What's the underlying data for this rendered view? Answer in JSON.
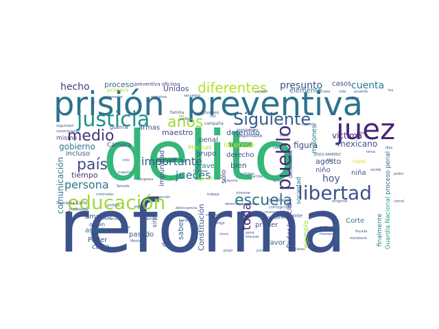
{
  "palette": {
    "background": "#ffffff",
    "dark_purple": "#440154",
    "indigo": "#3b528b",
    "blue": "#31688e",
    "teal": "#21908d",
    "green": "#35b779",
    "bright_green": "#5ec962",
    "lime": "#b5de2b",
    "yellow": "#fde725"
  },
  "words": [
    {
      "text": "reforma",
      "color": "#3b528b",
      "rotated": false
    },
    {
      "text": "delito",
      "color": "#35b779",
      "rotated": false
    },
    {
      "text": "prisión",
      "color": "#2c728e",
      "rotated": false
    },
    {
      "text": "preventiva",
      "color": "#2c728e",
      "rotated": false
    },
    {
      "text": "juez",
      "color": "#482677",
      "rotated": false
    },
    {
      "text": "justicia",
      "color": "#21908d",
      "rotated": false
    },
    {
      "text": "años",
      "color": "#a0da39",
      "rotated": false
    },
    {
      "text": "Siguiente",
      "color": "#38598c",
      "rotated": false
    },
    {
      "text": "educación",
      "color": "#a0da39",
      "rotated": false
    },
    {
      "text": "libertad",
      "color": "#3b528b",
      "rotated": false
    },
    {
      "text": "escuela",
      "color": "#2c728e",
      "rotated": false
    },
    {
      "text": "pueblo",
      "color": "#472d7b",
      "rotated": true
    },
    {
      "text": "diferentes",
      "color": "#b5de2b",
      "rotated": false
    },
    {
      "text": "medio",
      "color": "#46327e",
      "rotated": false
    },
    {
      "text": "país",
      "color": "#3e4a89",
      "rotated": false
    },
    {
      "text": "persona",
      "color": "#2c728e",
      "rotated": false
    },
    {
      "text": "importante",
      "color": "#38598c",
      "rotated": false
    },
    {
      "text": "jueces",
      "color": "#2c728e",
      "rotated": false
    },
    {
      "text": "toda",
      "color": "#482475",
      "rotated": true
    },
    {
      "text": "hoy",
      "color": "#3b528b",
      "rotated": false
    },
    {
      "text": "presunto",
      "color": "#3b528b",
      "rotated": false
    },
    {
      "text": "cuenta",
      "color": "#2a788e",
      "rotated": false
    },
    {
      "text": "hecho",
      "color": "#453781",
      "rotated": false
    },
    {
      "text": "proceso",
      "color": "#31688e",
      "rotated": false
    },
    {
      "text": "preventiva oficiosa",
      "color": "#443983",
      "rotated": false
    },
    {
      "text": "Unidos",
      "color": "#3e4a89",
      "rotated": false
    },
    {
      "text": "elemento",
      "color": "#2c728e",
      "rotated": false
    },
    {
      "text": "casos",
      "color": "#404688",
      "rotated": false
    },
    {
      "text": "primera",
      "color": "#b5de2b",
      "rotated": false
    },
    {
      "text": "víctima",
      "color": "#472c7a",
      "rotated": false
    },
    {
      "text": "figura",
      "color": "#3e4a89",
      "rotated": false
    },
    {
      "text": "mexicano",
      "color": "#3b528b",
      "rotated": false
    },
    {
      "text": "gobierno",
      "color": "#2a788e",
      "rotated": false
    },
    {
      "text": "incluso",
      "color": "#3b528b",
      "rotated": false
    },
    {
      "text": "tiempo",
      "color": "#443983",
      "rotated": false
    },
    {
      "text": "comunicación",
      "color": "#2a788e",
      "rotated": true
    },
    {
      "text": "maestro",
      "color": "#404688",
      "rotated": false
    },
    {
      "text": "detenido",
      "color": "#3b528b",
      "rotated": false
    },
    {
      "text": "interese",
      "color": "#d8e219",
      "rotated": false
    },
    {
      "text": "derecho",
      "color": "#3e4a89",
      "rotated": false
    },
    {
      "text": "bien",
      "color": "#3b528b",
      "rotated": false
    },
    {
      "text": "sólo",
      "color": "#443983",
      "rotated": true
    },
    {
      "text": "agosto",
      "color": "#3b528b",
      "rotated": false
    },
    {
      "text": "niño",
      "color": "#3b528b",
      "rotated": false
    },
    {
      "text": "niña",
      "color": "#3b528b",
      "rotated": false
    },
    {
      "text": "Poder Judicial",
      "color": "#453781",
      "rotated": true
    },
    {
      "text": "millones",
      "color": "#2a788e",
      "rotated": true
    },
    {
      "text": "determina",
      "color": "#3e4a89",
      "rotated": true
    },
    {
      "text": "Guardia Nacional",
      "color": "#20a386",
      "rotated": true
    },
    {
      "text": "proceso penal",
      "color": "#31688e",
      "rotated": true
    },
    {
      "text": "finalmente",
      "color": "#2a788e",
      "rotated": true
    },
    {
      "text": "relación",
      "color": "#2c728e",
      "rotated": true
    },
    {
      "text": "Corte",
      "color": "#2a788e",
      "rotated": false
    },
    {
      "text": "favor",
      "color": "#3b528b",
      "rotated": false
    },
    {
      "text": "primer",
      "color": "#3b528b",
      "rotated": false
    },
    {
      "text": "ejemplo",
      "color": "#9fda3a",
      "rotated": true
    },
    {
      "text": "obstante",
      "color": "#3b528b",
      "rotated": false
    },
    {
      "text": "Constitución",
      "color": "#3b528b",
      "rotated": true
    },
    {
      "text": "saber",
      "color": "#31688e",
      "rotated": true
    },
    {
      "text": "grave",
      "color": "#2a788e",
      "rotated": false
    },
    {
      "text": "grupo",
      "color": "#3b528b",
      "rotated": false
    },
    {
      "text": "Muchas",
      "color": "#b5de2b",
      "rotated": false
    },
    {
      "text": "penal",
      "color": "#3b528b",
      "rotated": false
    },
    {
      "text": "impunidad",
      "color": "#404688",
      "rotated": true
    },
    {
      "text": "armas",
      "color": "#3b528b",
      "rotated": false
    },
    {
      "text": "Cámara",
      "color": "#3b528b",
      "rotated": false
    },
    {
      "text": "mismo",
      "color": "#3b528b",
      "rotated": false
    },
    {
      "text": "guerra",
      "color": "#3b528b",
      "rotated": false
    },
    {
      "text": "embargo",
      "color": "#3b528b",
      "rotated": true
    },
    {
      "text": "amparo",
      "color": "#3b528b",
      "rotated": false
    },
    {
      "text": "orden",
      "color": "#3b528b",
      "rotated": false
    },
    {
      "text": "asunto",
      "color": "#2a788e",
      "rotated": false
    },
    {
      "text": "Poder",
      "color": "#3b528b",
      "rotated": false
    },
    {
      "text": "carta",
      "color": "#3b528b",
      "rotated": false
    },
    {
      "text": "pasado",
      "color": "#3b528b",
      "rotated": false
    },
    {
      "text": "sino",
      "color": "#3b528b",
      "rotated": true
    },
    {
      "text": "debate",
      "color": "#3b528b",
      "rotated": true
    },
    {
      "text": "sociedad",
      "color": "#2c728e",
      "rotated": true
    },
    {
      "text": "nivel",
      "color": "#d8e219",
      "rotated": false
    },
    {
      "text": "PRI",
      "color": "#3b528b",
      "rotated": false
    },
    {
      "text": "JESÚS RAMÍREZ",
      "color": "#3b528b",
      "rotated": false
    },
    {
      "text": "Imagínense",
      "color": "#3b528b",
      "rotated": false
    },
    {
      "text": "corrupción",
      "color": "#3b528b",
      "rotated": false
    },
    {
      "text": "responsable",
      "color": "#3b528b",
      "rotated": false
    },
    {
      "text": "legisladores",
      "color": "#3b528b",
      "rotated": false
    },
    {
      "text": "jóvenes",
      "color": "#3b528b",
      "rotated": false
    },
    {
      "text": "campaña",
      "color": "#3b528b",
      "rotated": false
    },
    {
      "text": "familia",
      "color": "#3b528b",
      "rotated": false
    },
    {
      "text": "PAN",
      "color": "#3b528b",
      "rotated": false
    },
    {
      "text": "sujeto",
      "color": "#3b528b",
      "rotated": false
    },
    {
      "text": "acuerdo",
      "color": "#3b528b",
      "rotated": false
    },
    {
      "text": "secuestro",
      "color": "#3b528b",
      "rotated": false
    },
    {
      "text": "seguridad",
      "color": "#3b528b",
      "rotated": false
    },
    {
      "text": "conocimiento",
      "color": "#3b528b",
      "rotated": false
    },
    {
      "text": "Suprema Corte",
      "color": "#3b528b",
      "rotated": false
    },
    {
      "text": "ciudadanos",
      "color": "#3b528b",
      "rotated": false
    },
    {
      "text": "política",
      "color": "#3b528b",
      "rotated": false
    },
    {
      "text": "criminales",
      "color": "#3b528b",
      "rotated": false
    },
    {
      "text": "dije",
      "color": "#3b528b",
      "rotated": false
    },
    {
      "text": "creo",
      "color": "#3b528b",
      "rotated": false
    },
    {
      "text": "maestra",
      "color": "#3b528b",
      "rotated": false
    },
    {
      "text": "gente",
      "color": "#b5de2b",
      "rotated": false
    },
    {
      "text": "Defensa",
      "color": "#3b528b",
      "rotated": false
    },
    {
      "text": "trabajo",
      "color": "#3b528b",
      "rotated": false
    },
    {
      "text": "informar",
      "color": "#3b528b",
      "rotated": false
    },
    {
      "text": "derechos humanos",
      "color": "#3b528b",
      "rotated": false
    },
    {
      "text": "amigo",
      "color": "#3b528b",
      "rotated": false
    },
    {
      "text": "cinco",
      "color": "#3b528b",
      "rotated": false
    },
    {
      "text": "mayoría",
      "color": "#3b528b",
      "rotated": false
    },
    {
      "text": "quiero",
      "color": "#3b528b",
      "rotated": false
    },
    {
      "text": "arriba",
      "color": "#3b528b",
      "rotated": false
    },
    {
      "text": "nuevamente",
      "color": "#3b528b",
      "rotated": false
    },
    {
      "text": "investigación",
      "color": "#3b528b",
      "rotated": false
    },
    {
      "text": "prisión",
      "color": "#3b528b",
      "rotated": false
    },
    {
      "text": "cada",
      "color": "#3b528b",
      "rotated": false
    },
    {
      "text": "familiares",
      "color": "#3b528b",
      "rotated": false
    },
    {
      "text": "dirigente",
      "color": "#3b528b",
      "rotated": false
    },
    {
      "text": "ayuda",
      "color": "#3b528b",
      "rotated": false
    },
    {
      "text": "ley",
      "color": "#3b528b",
      "rotated": false
    },
    {
      "text": "seguir",
      "color": "#3b528b",
      "rotated": true
    },
    {
      "text": "político",
      "color": "#3b528b",
      "rotated": false
    },
    {
      "text": "uso",
      "color": "#3b528b",
      "rotated": false
    },
    {
      "text": "claro",
      "color": "#3b528b",
      "rotated": false
    },
    {
      "text": "hay",
      "color": "#3b528b",
      "rotated": false
    },
    {
      "text": "Senado",
      "color": "#3b528b",
      "rotated": false
    },
    {
      "text": "estado",
      "color": "#3b528b",
      "rotated": false
    },
    {
      "text": "Cámara",
      "color": "#3b528b",
      "rotated": false
    },
    {
      "text": "acción",
      "color": "#3b528b",
      "rotated": false
    },
    {
      "text": "pena",
      "color": "#3b528b",
      "rotated": false
    },
    {
      "text": "tribunal",
      "color": "#3b528b",
      "rotated": false
    },
    {
      "text": "momento",
      "color": "#3b528b",
      "rotated": false
    },
    {
      "text": "ministerio",
      "color": "#3b528b",
      "rotated": false
    },
    {
      "text": "fiscalía",
      "color": "#3b528b",
      "rotated": false
    },
    {
      "text": "cárcel",
      "color": "#3b528b",
      "rotated": false
    },
    {
      "text": "poder",
      "color": "#3b528b",
      "rotated": false
    },
    {
      "text": "tema",
      "color": "#3b528b",
      "rotated": false
    },
    {
      "text": "días",
      "color": "#3b528b",
      "rotated": false
    },
    {
      "text": "casa",
      "color": "#3b528b",
      "rotated": false
    },
    {
      "text": "vida",
      "color": "#3b528b",
      "rotated": false
    },
    {
      "text": "cambio",
      "color": "#3b528b",
      "rotated": false
    },
    {
      "text": "gobernador",
      "color": "#3b528b",
      "rotated": false
    },
    {
      "text": "ministros",
      "color": "#3b528b",
      "rotated": false
    },
    {
      "text": "Congreso",
      "color": "#3b528b",
      "rotated": false
    },
    {
      "text": "víctimas",
      "color": "#3b528b",
      "rotated": false
    },
    {
      "text": "cuestión",
      "color": "#3b528b",
      "rotated": false
    },
    {
      "text": "tiene",
      "color": "#3b528b",
      "rotated": false
    },
    {
      "text": "delincuencia",
      "color": "#3b528b",
      "rotated": false
    },
    {
      "text": "sistema",
      "color": "#3b528b",
      "rotated": false
    },
    {
      "text": "decisión",
      "color": "#3b528b",
      "rotated": false
    },
    {
      "text": "iniciativa",
      "color": "#3b528b",
      "rotated": false
    },
    {
      "text": "Fiscal",
      "color": "#3b528b",
      "rotated": false
    },
    {
      "text": "México",
      "color": "#3b528b",
      "rotated": false
    },
    {
      "text": "ciudad",
      "color": "#3b528b",
      "rotated": false
    },
    {
      "text": "plazo",
      "color": "#3b528b",
      "rotated": false
    },
    {
      "text": "juicio",
      "color": "#3b528b",
      "rotated": false
    }
  ]
}
